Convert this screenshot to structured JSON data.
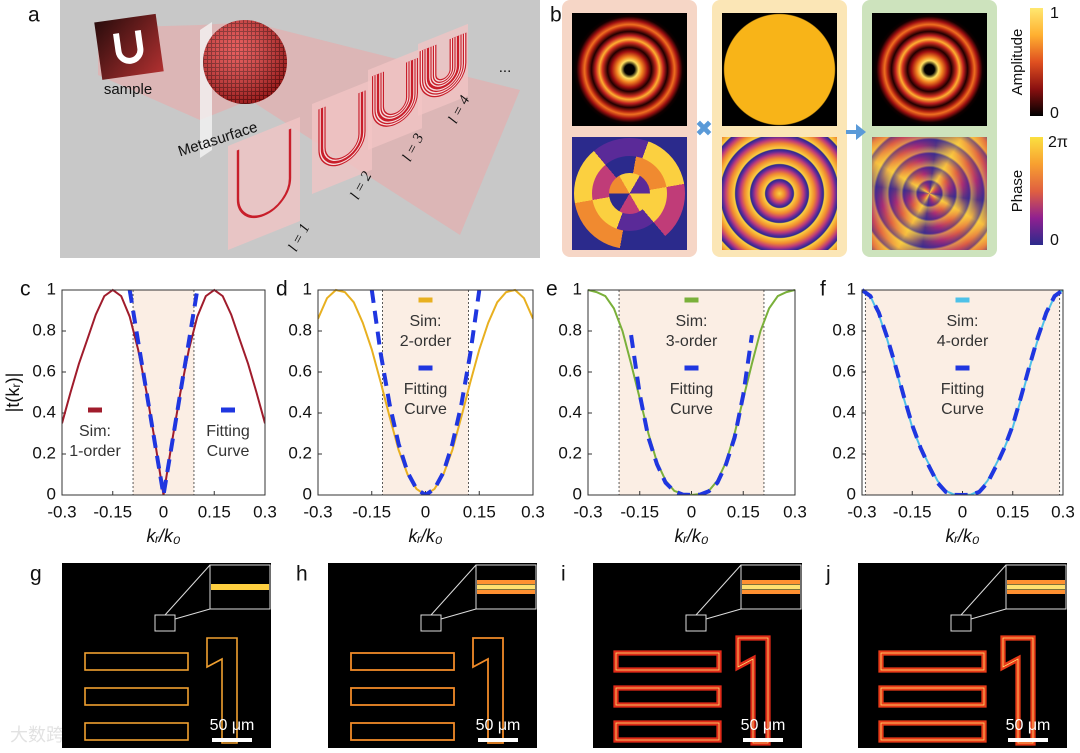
{
  "panel_a": {
    "label": "a",
    "sample": "sample",
    "metasurface": "Metasurface",
    "orders": [
      "l = 1",
      "l = 2",
      "l = 3",
      "l = 4"
    ],
    "more": "..."
  },
  "panel_b": {
    "label": "b",
    "amplitude": {
      "title": "Amplitude",
      "max": "1",
      "min": "0"
    },
    "phase": {
      "title": "Phase",
      "max": "2π",
      "min": "0"
    }
  },
  "chart_data": [
    {
      "type": "line",
      "label": "c",
      "xlabel": "kᵣ/k₀",
      "ylabel": "|t(kᵣ)|",
      "x": [
        -0.3,
        -0.275,
        -0.25,
        -0.225,
        -0.2,
        -0.175,
        -0.15,
        -0.125,
        -0.1,
        -0.075,
        -0.05,
        -0.025,
        0,
        0.025,
        0.05,
        0.075,
        0.1,
        0.125,
        0.15,
        0.175,
        0.2,
        0.225,
        0.25,
        0.275,
        0.3
      ],
      "xlim": [
        -0.3,
        0.3
      ],
      "xticks": [
        -0.3,
        -0.15,
        0,
        0.15,
        0.3
      ],
      "ylim": [
        0,
        1
      ],
      "yticks": [
        0,
        0.2,
        0.4,
        0.6,
        0.8,
        1
      ],
      "shade": [
        -0.09,
        0.09
      ],
      "legend": "lower",
      "series": [
        {
          "name": "Sim: 1-order",
          "color": "#a01c2c",
          "values": [
            0.35,
            0.5,
            0.64,
            0.76,
            0.88,
            0.97,
            1,
            0.97,
            0.87,
            0.71,
            0.5,
            0.26,
            0,
            0.26,
            0.5,
            0.71,
            0.87,
            0.97,
            1,
            0.97,
            0.88,
            0.76,
            0.64,
            0.5,
            0.35
          ]
        },
        {
          "name": "Fitting Curve",
          "color": "#1f36e0",
          "dashed": true,
          "values": [
            null,
            null,
            null,
            null,
            null,
            null,
            null,
            null,
            1,
            0.75,
            0.5,
            0.25,
            0,
            0.25,
            0.5,
            0.75,
            1,
            null,
            null,
            null,
            null,
            null,
            null,
            null,
            null
          ]
        }
      ]
    },
    {
      "type": "line",
      "label": "d",
      "xlabel": "kᵣ/k₀",
      "x": [
        -0.3,
        -0.275,
        -0.25,
        -0.225,
        -0.2,
        -0.175,
        -0.15,
        -0.125,
        -0.1,
        -0.075,
        -0.05,
        -0.025,
        0,
        0.025,
        0.05,
        0.075,
        0.1,
        0.125,
        0.15,
        0.175,
        0.2,
        0.225,
        0.25,
        0.275,
        0.3
      ],
      "xlim": [
        -0.3,
        0.3
      ],
      "xticks": [
        -0.3,
        -0.15,
        0,
        0.15,
        0.3
      ],
      "ylim": [
        0,
        1
      ],
      "yticks": [
        0,
        0.2,
        0.4,
        0.6,
        0.8,
        1
      ],
      "shade": [
        -0.12,
        0.12
      ],
      "legend": "center",
      "series": [
        {
          "name": "Sim: 2-order",
          "color": "#e8b020",
          "values": [
            0.86,
            0.96,
            1,
            0.99,
            0.94,
            0.84,
            0.71,
            0.55,
            0.38,
            0.22,
            0.1,
            0.03,
            0,
            0.03,
            0.1,
            0.22,
            0.38,
            0.55,
            0.71,
            0.84,
            0.94,
            0.99,
            1,
            0.96,
            0.86
          ]
        },
        {
          "name": "Fitting Curve",
          "color": "#1f36e0",
          "dashed": true,
          "values": [
            null,
            null,
            null,
            null,
            null,
            null,
            1,
            0.69,
            0.44,
            0.25,
            0.11,
            0.03,
            0,
            0.03,
            0.11,
            0.25,
            0.44,
            0.69,
            1,
            null,
            null,
            null,
            null,
            null,
            null
          ]
        }
      ]
    },
    {
      "type": "line",
      "label": "e",
      "xlabel": "kᵣ/k₀",
      "x": [
        -0.3,
        -0.275,
        -0.25,
        -0.225,
        -0.2,
        -0.175,
        -0.15,
        -0.125,
        -0.1,
        -0.075,
        -0.05,
        -0.025,
        0,
        0.025,
        0.05,
        0.075,
        0.1,
        0.125,
        0.15,
        0.175,
        0.2,
        0.225,
        0.25,
        0.275,
        0.3
      ],
      "xlim": [
        -0.3,
        0.3
      ],
      "xticks": [
        -0.3,
        -0.15,
        0,
        0.15,
        0.3
      ],
      "ylim": [
        0,
        1
      ],
      "yticks": [
        0,
        0.2,
        0.4,
        0.6,
        0.8,
        1
      ],
      "shade": [
        -0.21,
        0.21
      ],
      "legend": "center",
      "series": [
        {
          "name": "Sim: 3-order",
          "color": "#7ab03a",
          "values": [
            1,
            0.99,
            0.97,
            0.91,
            0.8,
            0.64,
            0.47,
            0.3,
            0.16,
            0.07,
            0.02,
            0.005,
            0,
            0.005,
            0.02,
            0.07,
            0.16,
            0.3,
            0.47,
            0.64,
            0.8,
            0.91,
            0.97,
            0.99,
            1
          ]
        },
        {
          "name": "Fitting Curve",
          "color": "#1f36e0",
          "dashed": true,
          "values": [
            null,
            null,
            null,
            null,
            null,
            0.78,
            0.49,
            0.28,
            0.15,
            0.06,
            0.018,
            0.002,
            0,
            0.002,
            0.018,
            0.06,
            0.15,
            0.28,
            0.49,
            0.78,
            null,
            null,
            null,
            null,
            null
          ]
        }
      ]
    },
    {
      "type": "line",
      "label": "f",
      "xlabel": "kᵣ/k₀",
      "x": [
        -0.3,
        -0.275,
        -0.25,
        -0.225,
        -0.2,
        -0.175,
        -0.15,
        -0.125,
        -0.1,
        -0.075,
        -0.05,
        -0.025,
        0,
        0.025,
        0.05,
        0.075,
        0.1,
        0.125,
        0.15,
        0.175,
        0.2,
        0.225,
        0.25,
        0.275,
        0.3
      ],
      "xlim": [
        -0.3,
        0.3
      ],
      "xticks": [
        -0.3,
        -0.15,
        0,
        0.15,
        0.3
      ],
      "ylim": [
        0,
        1
      ],
      "yticks": [
        0,
        0.2,
        0.4,
        0.6,
        0.8,
        1
      ],
      "shade": [
        -0.29,
        0.29
      ],
      "legend": "center",
      "series": [
        {
          "name": "Sim: 4-order",
          "color": "#4ec1e8",
          "values": [
            1,
            0.97,
            0.88,
            0.76,
            0.62,
            0.47,
            0.33,
            0.23,
            0.15,
            0.07,
            0.02,
            0.002,
            0,
            0.002,
            0.02,
            0.07,
            0.15,
            0.23,
            0.33,
            0.47,
            0.62,
            0.76,
            0.88,
            0.97,
            1
          ]
        },
        {
          "name": "Fitting Curve",
          "color": "#1f36e0",
          "dashed": true,
          "values": [
            1,
            0.97,
            0.89,
            0.77,
            0.63,
            0.48,
            0.34,
            0.23,
            0.14,
            0.06,
            0.015,
            0.001,
            0,
            0.001,
            0.015,
            0.06,
            0.14,
            0.23,
            0.34,
            0.48,
            0.63,
            0.77,
            0.89,
            0.97,
            1
          ]
        }
      ]
    }
  ],
  "images": [
    {
      "label": "g",
      "scale_bar": "50 μm"
    },
    {
      "label": "h",
      "scale_bar": "50 μm"
    },
    {
      "label": "i",
      "scale_bar": "50 μm"
    },
    {
      "label": "j",
      "scale_bar": "50 μm"
    }
  ],
  "watermark": "大数跨境"
}
